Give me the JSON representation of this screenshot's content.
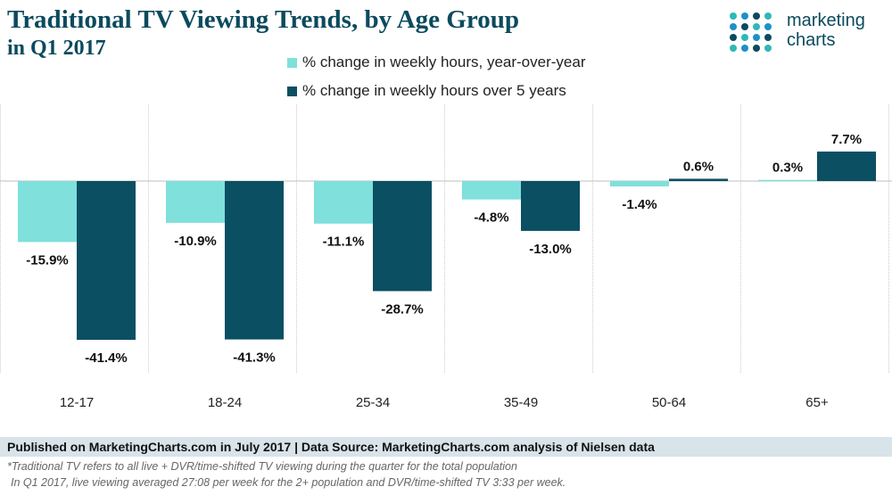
{
  "header": {
    "title": "Traditional TV Viewing Trends, by Age Group",
    "subtitle": "in Q1 2017"
  },
  "logo": {
    "line1": "marketing",
    "line2": "charts",
    "dot_colors": [
      "#2fb8b8",
      "#1e90c8",
      "#0b4a5e"
    ]
  },
  "colors": {
    "yoy": "#7fe0dc",
    "five_year": "#0b4f63",
    "title": "#0b4a5e",
    "footer_bg": "#d8e3ea"
  },
  "chart_data": {
    "type": "bar",
    "categories": [
      "12-17",
      "18-24",
      "25-34",
      "35-49",
      "50-64",
      "65+"
    ],
    "series": [
      {
        "name": "% change in weekly hours, year-over-year",
        "values": [
          -15.9,
          -10.9,
          -11.1,
          -4.8,
          -1.4,
          0.3
        ],
        "labels": [
          "-15.9%",
          "-10.9%",
          "-11.1%",
          "-4.8%",
          "-1.4%",
          "0.3%"
        ]
      },
      {
        "name": "% change in weekly hours over 5 years",
        "values": [
          -41.4,
          -41.3,
          -28.7,
          -13.0,
          0.6,
          7.7
        ],
        "labels": [
          "-41.4%",
          "-41.3%",
          "-28.7%",
          "-13.0%",
          "0.6%",
          "7.7%"
        ]
      }
    ],
    "ylim": [
      -50,
      20
    ],
    "grid": false,
    "legend_position": "top"
  },
  "footer": {
    "source": "Published on MarketingCharts.com in July 2017 | Data Source: MarketingCharts.com analysis of Nielsen data",
    "note1": "*Traditional TV refers to all live + DVR/time-shifted TV viewing during the quarter for the total population",
    "note2": "In Q1 2017, live viewing averaged 27:08 per week for the 2+ population and DVR/time-shifted TV 3:33 per week."
  }
}
